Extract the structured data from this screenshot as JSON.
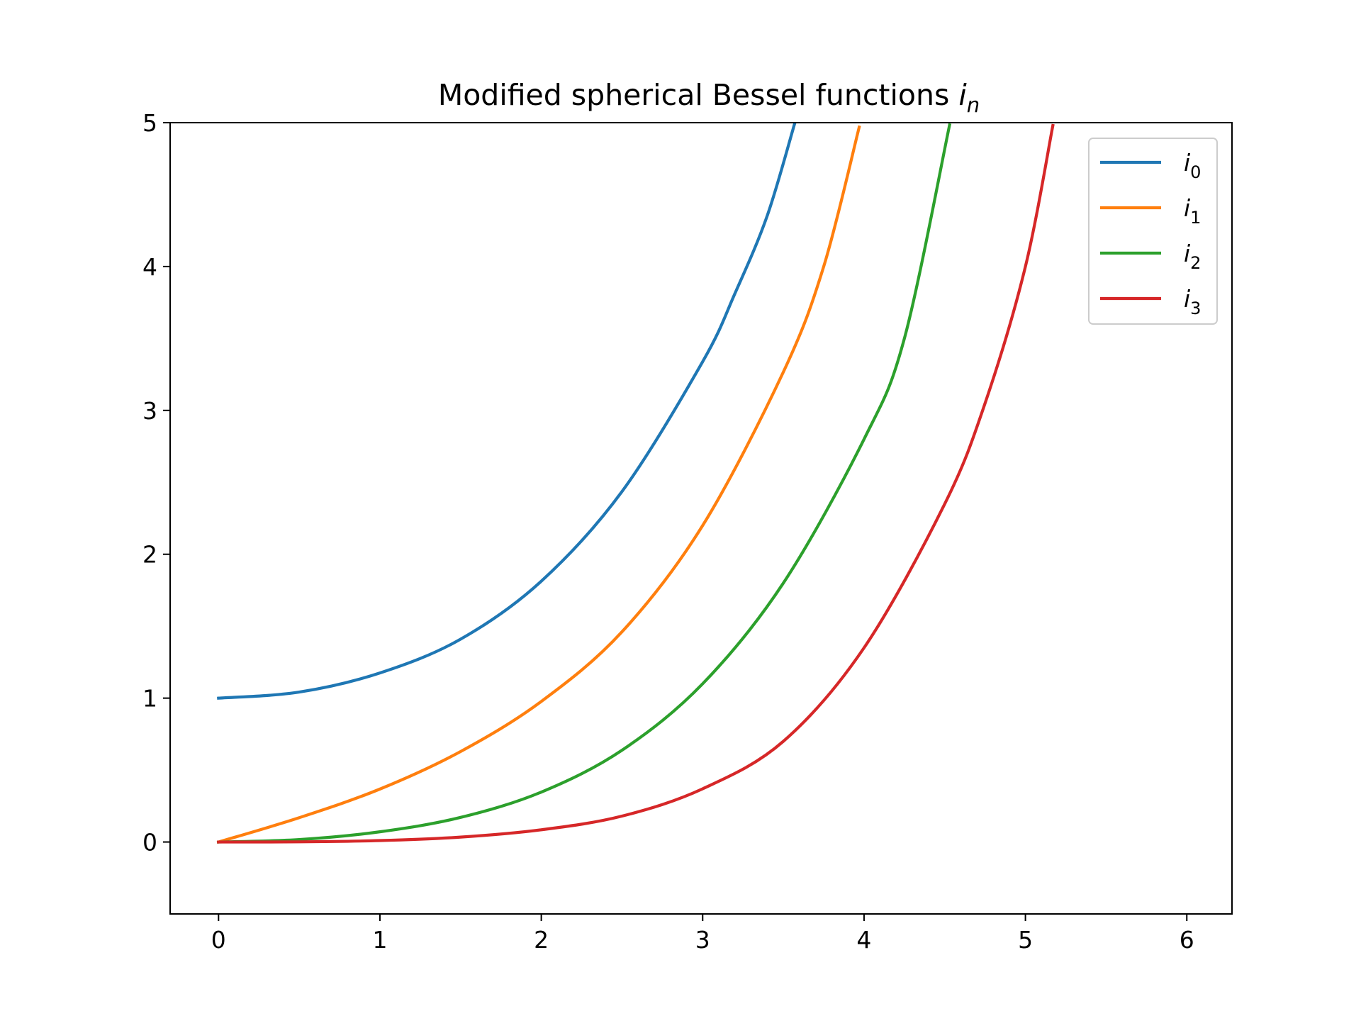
{
  "chart_data": {
    "type": "line",
    "title": {
      "main": "Modified spherical Bessel functions ",
      "symbol": "i",
      "subscript": "n"
    },
    "xlabel": "",
    "ylabel": "",
    "xlim": [
      -0.3,
      6.28
    ],
    "ylim": [
      -0.5,
      5
    ],
    "xticks": [
      0,
      1,
      2,
      3,
      4,
      5,
      6
    ],
    "yticks": [
      0,
      1,
      2,
      3,
      4,
      5
    ],
    "grid": false,
    "legend_position": "top-right",
    "series": [
      {
        "name": "i0",
        "symbol": "i",
        "subscript": "0",
        "color": "#1f77b4",
        "x": [
          0,
          0.5,
          1.0,
          1.5,
          2.0,
          2.5,
          3.0,
          3.2,
          3.4,
          3.57
        ],
        "y": [
          1.0,
          1.042,
          1.175,
          1.41,
          1.813,
          2.436,
          3.339,
          3.813,
          4.353,
          4.994
        ]
      },
      {
        "name": "i1",
        "symbol": "i",
        "subscript": "1",
        "color": "#ff7f0e",
        "x": [
          0,
          0.5,
          1.0,
          1.5,
          2.0,
          2.5,
          3.0,
          3.5,
          3.75,
          3.97
        ],
        "y": [
          0.0,
          0.169,
          0.368,
          0.629,
          0.977,
          1.461,
          2.2,
          3.267,
          4.0,
          4.969
        ]
      },
      {
        "name": "i2",
        "symbol": "i",
        "subscript": "2",
        "color": "#2ca02c",
        "x": [
          0,
          0.5,
          1.0,
          1.5,
          2.0,
          2.5,
          3.0,
          3.5,
          4.0,
          4.25,
          4.53
        ],
        "y": [
          0.0,
          0.017,
          0.071,
          0.171,
          0.347,
          0.638,
          1.1,
          1.8,
          2.8,
          3.5,
          4.984
        ]
      },
      {
        "name": "i3",
        "symbol": "i",
        "subscript": "3",
        "color": "#d62728",
        "x": [
          0,
          0.5,
          1.0,
          1.5,
          2.0,
          2.5,
          3.0,
          3.5,
          4.0,
          4.5,
          4.75,
          5.0,
          5.17
        ],
        "y": [
          0.0,
          0.0011,
          0.01,
          0.034,
          0.085,
          0.18,
          0.37,
          0.7,
          1.35,
          2.35,
          3.05,
          4.0,
          4.98
        ]
      }
    ]
  }
}
